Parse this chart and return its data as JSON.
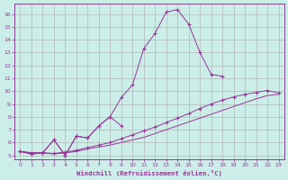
{
  "background_color": "#cceee8",
  "grid_color": "#aaaaaa",
  "line_color": "#993399",
  "xlabel": "Windchill (Refroidissement éolien,°C)",
  "xlim": [
    -0.5,
    23.5
  ],
  "ylim": [
    4.7,
    16.8
  ],
  "xticks": [
    0,
    1,
    2,
    3,
    4,
    5,
    6,
    7,
    8,
    9,
    10,
    11,
    12,
    13,
    14,
    15,
    16,
    17,
    18,
    19,
    20,
    21,
    22,
    23
  ],
  "yticks": [
    5,
    6,
    7,
    8,
    9,
    10,
    11,
    12,
    13,
    14,
    15,
    16
  ],
  "line1_x": [
    0,
    1,
    2,
    3,
    4,
    5,
    6,
    7,
    8,
    9,
    10,
    11,
    12,
    13,
    14,
    15,
    16,
    17,
    18,
    19,
    20,
    21,
    22,
    23
  ],
  "line1_y": [
    5.3,
    5.2,
    5.2,
    5.1,
    5.2,
    5.3,
    5.5,
    5.65,
    5.8,
    6.0,
    6.2,
    6.4,
    6.7,
    7.0,
    7.3,
    7.6,
    7.9,
    8.2,
    8.5,
    8.8,
    9.1,
    9.4,
    9.65,
    9.75
  ],
  "line2_x": [
    0,
    1,
    2,
    3,
    4,
    5,
    6,
    7,
    8,
    9,
    10,
    11,
    12,
    13,
    14,
    15,
    16,
    17,
    18,
    19,
    20,
    21,
    22,
    23
  ],
  "line2_y": [
    5.3,
    5.2,
    5.2,
    5.15,
    5.25,
    5.4,
    5.6,
    5.8,
    6.0,
    6.3,
    6.6,
    6.9,
    7.2,
    7.55,
    7.9,
    8.25,
    8.65,
    9.0,
    9.3,
    9.55,
    9.75,
    9.9,
    10.05,
    9.85
  ],
  "line3_x": [
    0,
    1,
    2,
    3,
    4,
    5,
    6,
    7,
    8,
    9
  ],
  "line3_y": [
    5.3,
    5.1,
    5.2,
    6.2,
    5.0,
    6.5,
    6.35,
    7.3,
    8.0,
    7.3
  ],
  "line4_x": [
    0,
    1,
    2,
    3,
    4,
    5,
    6,
    7,
    8,
    9,
    10,
    11,
    12,
    13,
    14,
    15,
    16,
    17,
    18
  ],
  "line4_y": [
    5.3,
    5.1,
    5.2,
    6.2,
    5.0,
    6.5,
    6.35,
    7.3,
    8.0,
    9.5,
    10.5,
    13.3,
    14.5,
    16.15,
    16.35,
    15.2,
    13.0,
    11.3,
    11.15
  ]
}
